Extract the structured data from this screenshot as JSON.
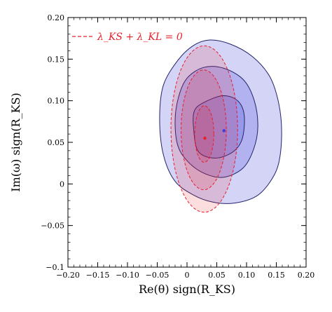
{
  "chart_data": {
    "type": "contour",
    "title": "",
    "xlabel": "Re(θ) sign(R_KS)",
    "ylabel": "Im(ω) sign(R_KS)",
    "xlim": [
      -0.2,
      0.2
    ],
    "ylim": [
      -0.1,
      0.2
    ],
    "x_ticks": [
      -0.2,
      -0.15,
      -0.1,
      -0.05,
      0,
      0.05,
      0.1,
      0.15,
      0.2
    ],
    "y_ticks": [
      -0.1,
      -0.05,
      0,
      0.05,
      0.1,
      0.15,
      0.2
    ],
    "x_tick_labels": [
      "−0.20",
      "−0.15",
      "−0.10",
      "−0.05",
      "0",
      "0.05",
      "0.10",
      "0.15",
      "0.20"
    ],
    "y_tick_labels": [
      "−0.1",
      "−0.05",
      "0",
      "0.05",
      "0.10",
      "0.15",
      "0.20"
    ],
    "grid": false,
    "legend_position": "top-left",
    "legend": {
      "entries": [
        {
          "label": "λ_KS + λ_KL = 0",
          "color": "#e8202a",
          "style": "dashed"
        }
      ]
    },
    "series": [
      {
        "style": "filled-contours",
        "color": "#3b3bdc",
        "best_fit": {
          "x": 0.062,
          "y": 0.064
        },
        "contours": [
          {
            "level": 1,
            "points": [
              [
                0.026,
                0.097
              ],
              [
                0.06,
                0.106
              ],
              [
                0.085,
                0.1
              ],
              [
                0.096,
                0.083
              ],
              [
                0.093,
                0.055
              ],
              [
                0.078,
                0.039
              ],
              [
                0.048,
                0.031
              ],
              [
                0.019,
                0.039
              ],
              [
                0.011,
                0.067
              ],
              [
                0.012,
                0.087
              ]
            ]
          },
          {
            "level": 2,
            "points": [
              [
                0.0,
                0.127
              ],
              [
                0.028,
                0.14
              ],
              [
                0.062,
                0.139
              ],
              [
                0.095,
                0.125
              ],
              [
                0.113,
                0.1
              ],
              [
                0.119,
                0.069
              ],
              [
                0.112,
                0.042
              ],
              [
                0.094,
                0.019
              ],
              [
                0.062,
                0.008
              ],
              [
                0.031,
                0.012
              ],
              [
                0.004,
                0.025
              ],
              [
                -0.015,
                0.045
              ],
              [
                -0.02,
                0.076
              ],
              [
                -0.014,
                0.105
              ]
            ]
          },
          {
            "level": 3,
            "points": [
              [
                -0.016,
                0.148
              ],
              [
                0.01,
                0.166
              ],
              [
                0.038,
                0.173
              ],
              [
                0.073,
                0.168
              ],
              [
                0.11,
                0.153
              ],
              [
                0.139,
                0.129
              ],
              [
                0.154,
                0.097
              ],
              [
                0.159,
                0.062
              ],
              [
                0.154,
                0.025
              ],
              [
                0.139,
                0.002
              ],
              [
                0.116,
                -0.015
              ],
              [
                0.08,
                -0.023
              ],
              [
                0.044,
                -0.022
              ],
              [
                0.01,
                -0.013
              ],
              [
                -0.021,
                0.004
              ],
              [
                -0.04,
                0.036
              ],
              [
                -0.046,
                0.078
              ],
              [
                -0.04,
                0.118
              ]
            ]
          }
        ]
      },
      {
        "style": "dashed-contours",
        "color": "#e8202a",
        "best_fit": {
          "x": 0.03,
          "y": 0.055
        },
        "contours": [
          {
            "level": 1,
            "cx": 0.029,
            "cy": 0.06,
            "rx": 0.016,
            "ry": 0.034
          },
          {
            "level": 2,
            "cx": 0.028,
            "cy": 0.065,
            "rx": 0.038,
            "ry": 0.072
          },
          {
            "level": 3,
            "cx": 0.029,
            "cy": 0.066,
            "rx": 0.056,
            "ry": 0.1
          }
        ]
      }
    ]
  }
}
